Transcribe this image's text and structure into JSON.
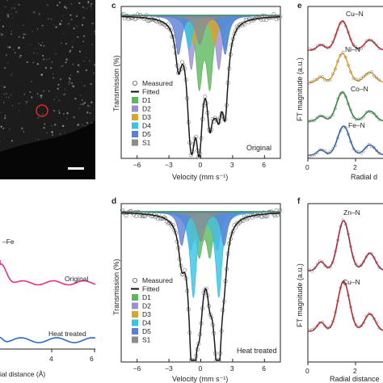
{
  "colors": {
    "D1": "#5cb85c",
    "D2": "#9b8fd6",
    "D3": "#d4a62a",
    "D4": "#35c3e6",
    "D5": "#5b7fd6",
    "S1": "#8c8c8c",
    "fit": "#1a1a1a",
    "bg_envelope": "#2d8b5c",
    "Cu": "#c0252a",
    "Ni": "#e5a42a",
    "Co": "#2e8b3d",
    "Fe": "#2a63b5",
    "Zn": "#a8243a",
    "original_ff": "#e0308a",
    "heat_ff": "#2d68c4"
  },
  "panel_a": {
    "scale_bar": true
  },
  "panel_b": {
    "tick_labels": [
      "4",
      "6"
    ],
    "xlabel": "ial distance (Å)",
    "bond_label": "–Fe",
    "series_labels": [
      "Original",
      "Heat treated"
    ]
  },
  "panel_c": {
    "letter": "c",
    "ylabel": "Transmission (%)",
    "xlabel": "Velocity (mm s⁻¹)",
    "sample_label": "Original",
    "legend": [
      "Measured",
      "Fitted",
      "D1",
      "D2",
      "D3",
      "D4",
      "D5",
      "S1"
    ],
    "xticks": [
      "−6",
      "−3",
      "0",
      "3",
      "6"
    ]
  },
  "panel_d": {
    "letter": "d",
    "ylabel": "Transmission (%)",
    "xlabel": "Velocity (mm s⁻¹)",
    "sample_label": "Heat treated",
    "legend": [
      "Measured",
      "Fitted",
      "D1",
      "D2",
      "D3",
      "D4",
      "D5",
      "S1"
    ],
    "xticks": [
      "−6",
      "−3",
      "0",
      "3",
      "6"
    ]
  },
  "panel_e": {
    "letter": "e",
    "ylabel": "FT magnitude (a.u.)",
    "xlabel": "Radial d",
    "xticks": [
      "0",
      "2"
    ],
    "bonds": [
      "Cu–N",
      "Ni–N",
      "Co–N",
      "Fe–N"
    ]
  },
  "panel_f": {
    "letter": "f",
    "ylabel": "FT magnitude (a.u.)",
    "xlabel": "Radial distance",
    "xticks": [
      "0",
      "2"
    ],
    "bonds": [
      "Zn–N",
      "Cu–N"
    ]
  },
  "chart_data": [
    {
      "type": "line",
      "panel": "c",
      "xlabel": "Velocity (mm s⁻¹)",
      "ylabel": "Transmission (%)",
      "xlim": [
        -7.5,
        7.5
      ],
      "x_ticks": [
        -6,
        -3,
        0,
        3,
        6
      ],
      "grid": false,
      "legend_position": "left",
      "series": [
        {
          "name": "Measured",
          "kind": "points"
        },
        {
          "name": "Fitted",
          "kind": "line"
        },
        {
          "name": "D1",
          "kind": "doublet",
          "center": 0.35,
          "split": 1.0,
          "depth": 0.28
        },
        {
          "name": "D2",
          "kind": "doublet",
          "center": 0.4,
          "split": 2.6,
          "depth": 0.22
        },
        {
          "name": "D3",
          "kind": "doublet",
          "center": 0.3,
          "split": 2.0,
          "depth": 0.12
        },
        {
          "name": "D4",
          "kind": "doublet",
          "center": 0.6,
          "split": 3.4,
          "depth": 0.14
        },
        {
          "name": "D5",
          "kind": "doublet",
          "center": 0.1,
          "split": 4.4,
          "depth": 0.16
        },
        {
          "name": "S1",
          "kind": "singlet",
          "center": -0.1,
          "depth": 0.12
        }
      ]
    },
    {
      "type": "line",
      "panel": "d",
      "xlabel": "Velocity (mm s⁻¹)",
      "ylabel": "Transmission (%)",
      "xlim": [
        -7.5,
        7.5
      ],
      "x_ticks": [
        -6,
        -3,
        0,
        3,
        6
      ],
      "grid": false,
      "legend_position": "left",
      "series": [
        {
          "name": "Measured",
          "kind": "points"
        },
        {
          "name": "Fitted",
          "kind": "line"
        },
        {
          "name": "D1",
          "kind": "doublet",
          "center": 0.35,
          "split": 1.0,
          "depth": 0.2
        },
        {
          "name": "D2",
          "kind": "doublet",
          "center": 0.3,
          "split": 2.5,
          "depth": 0.18
        },
        {
          "name": "D3",
          "kind": "doublet",
          "center": 0.3,
          "split": 2.0,
          "depth": 0.14
        },
        {
          "name": "D4",
          "kind": "doublet",
          "center": 0.5,
          "split": 2.4,
          "depth": 0.4
        },
        {
          "name": "D5",
          "kind": "doublet",
          "center": 0.2,
          "split": 4.0,
          "depth": 0.16
        },
        {
          "name": "S1",
          "kind": "singlet",
          "center": 0.0,
          "depth": 0.14
        }
      ]
    },
    {
      "type": "line",
      "panel": "e",
      "xlabel": "Radial d",
      "ylabel": "FT magnitude (a.u.)",
      "x_ticks": [
        0,
        2
      ],
      "series": [
        {
          "name": "Cu–N",
          "peak_r": 1.45
        },
        {
          "name": "Ni–N",
          "peak_r": 1.45
        },
        {
          "name": "Co–N",
          "peak_r": 1.45
        },
        {
          "name": "Fe–N",
          "peak_r": 1.5
        }
      ]
    },
    {
      "type": "line",
      "panel": "f",
      "xlabel": "Radial distance",
      "ylabel": "FT magnitude (a.u.)",
      "x_ticks": [
        0,
        2
      ],
      "series": [
        {
          "name": "Zn–N",
          "peak_r": 1.5
        },
        {
          "name": "Cu–N",
          "peak_r": 1.5
        }
      ]
    }
  ]
}
